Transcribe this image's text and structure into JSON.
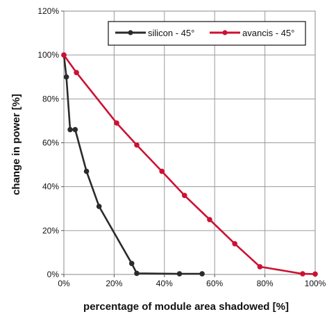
{
  "chart_data": {
    "type": "line",
    "xlabel": "percentage of module area shadowed [%]",
    "ylabel": "change in power [%]",
    "xlim": [
      0,
      100
    ],
    "ylim": [
      0,
      120
    ],
    "x_ticks": [
      "0%",
      "20%",
      "40%",
      "60%",
      "80%",
      "100%"
    ],
    "y_ticks": [
      "0%",
      "20%",
      "40%",
      "60%",
      "80%",
      "100%",
      "120%"
    ],
    "grid": true,
    "legend_position": "top-right",
    "series": [
      {
        "name": "silicon - 45°",
        "color": "#2b2b2b",
        "points": [
          [
            0,
            100
          ],
          [
            1,
            90
          ],
          [
            2.5,
            66
          ],
          [
            4.5,
            66
          ],
          [
            9,
            47
          ],
          [
            14,
            31
          ],
          [
            27,
            5
          ],
          [
            29,
            0.5
          ],
          [
            46,
            0.3
          ],
          [
            55,
            0.3
          ]
        ]
      },
      {
        "name": "avancis - 45°",
        "color": "#cc1133",
        "points": [
          [
            0,
            100
          ],
          [
            5,
            92
          ],
          [
            21,
            69
          ],
          [
            29,
            59
          ],
          [
            39,
            47
          ],
          [
            48,
            36
          ],
          [
            58,
            25
          ],
          [
            68,
            14
          ],
          [
            78,
            3.5
          ],
          [
            95,
            0.3
          ],
          [
            100,
            0.2
          ]
        ]
      }
    ]
  }
}
